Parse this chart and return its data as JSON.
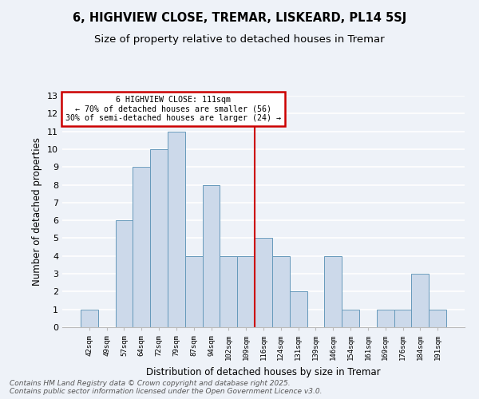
{
  "title": "6, HIGHVIEW CLOSE, TREMAR, LISKEARD, PL14 5SJ",
  "subtitle": "Size of property relative to detached houses in Tremar",
  "xlabel": "Distribution of detached houses by size in Tremar",
  "ylabel": "Number of detached properties",
  "bar_labels": [
    "42sqm",
    "49sqm",
    "57sqm",
    "64sqm",
    "72sqm",
    "79sqm",
    "87sqm",
    "94sqm",
    "102sqm",
    "109sqm",
    "116sqm",
    "124sqm",
    "131sqm",
    "139sqm",
    "146sqm",
    "154sqm",
    "161sqm",
    "169sqm",
    "176sqm",
    "184sqm",
    "191sqm"
  ],
  "bar_values": [
    1,
    0,
    6,
    9,
    10,
    11,
    4,
    8,
    4,
    4,
    5,
    4,
    2,
    0,
    4,
    1,
    0,
    1,
    1,
    3,
    1
  ],
  "bar_color": "#ccd9ea",
  "bar_edgecolor": "#6699bb",
  "vline_color": "#cc0000",
  "annotation_text": "6 HIGHVIEW CLOSE: 111sqm\n← 70% of detached houses are smaller (56)\n30% of semi-detached houses are larger (24) →",
  "annotation_box_color": "#cc0000",
  "ylim": [
    0,
    13
  ],
  "yticks": [
    0,
    1,
    2,
    3,
    4,
    5,
    6,
    7,
    8,
    9,
    10,
    11,
    12,
    13
  ],
  "background_color": "#eef2f8",
  "grid_color": "#ffffff",
  "footer": "Contains HM Land Registry data © Crown copyright and database right 2025.\nContains public sector information licensed under the Open Government Licence v3.0."
}
